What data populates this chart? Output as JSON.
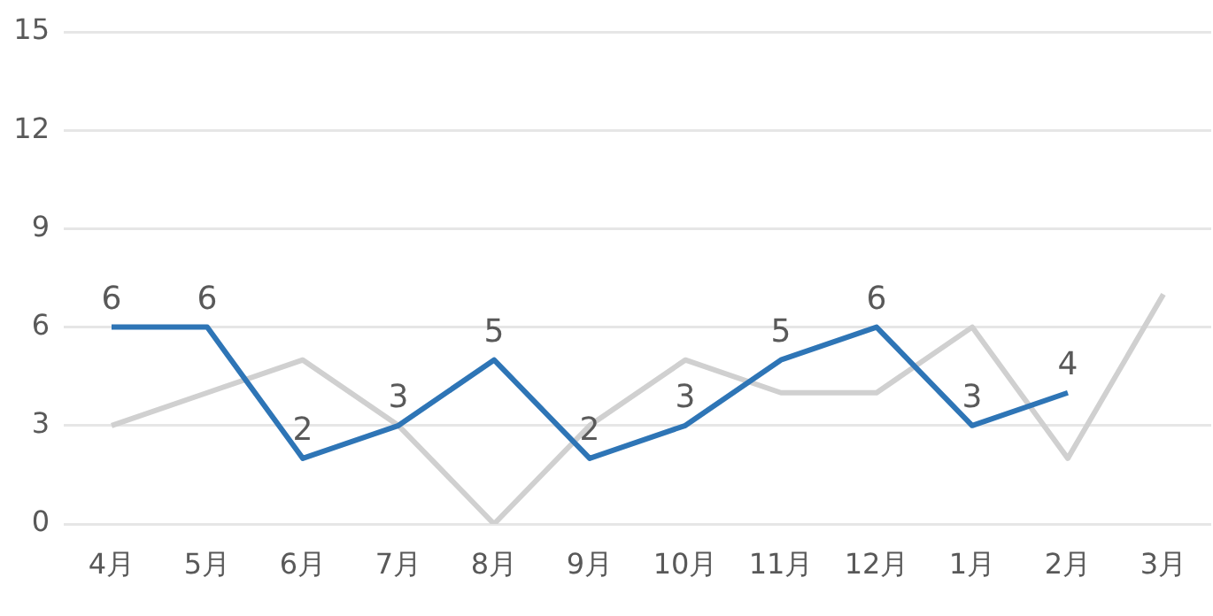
{
  "chart_data": {
    "type": "line",
    "categories": [
      "4月",
      "5月",
      "6月",
      "7月",
      "8月",
      "9月",
      "10月",
      "11月",
      "12月",
      "1月",
      "2月",
      "3月"
    ],
    "series": [
      {
        "color": "#2e75b6",
        "values": [
          6,
          6,
          2,
          3,
          5,
          2,
          3,
          5,
          6,
          3,
          4,
          null
        ],
        "value_labels": [
          "6",
          "6",
          "2",
          "3",
          "5",
          "2",
          "3",
          "5",
          "6",
          "3",
          "4",
          null
        ]
      },
      {
        "color": "#d0d0d0",
        "values": [
          3,
          4,
          5,
          3,
          0,
          3,
          5,
          4,
          4,
          6,
          2,
          7
        ]
      }
    ],
    "ylim": [
      0,
      15
    ],
    "yticks": [
      0,
      3,
      6,
      9,
      12,
      15
    ],
    "grid": "y",
    "legend": false,
    "marker": "none",
    "line_style": "solid"
  }
}
